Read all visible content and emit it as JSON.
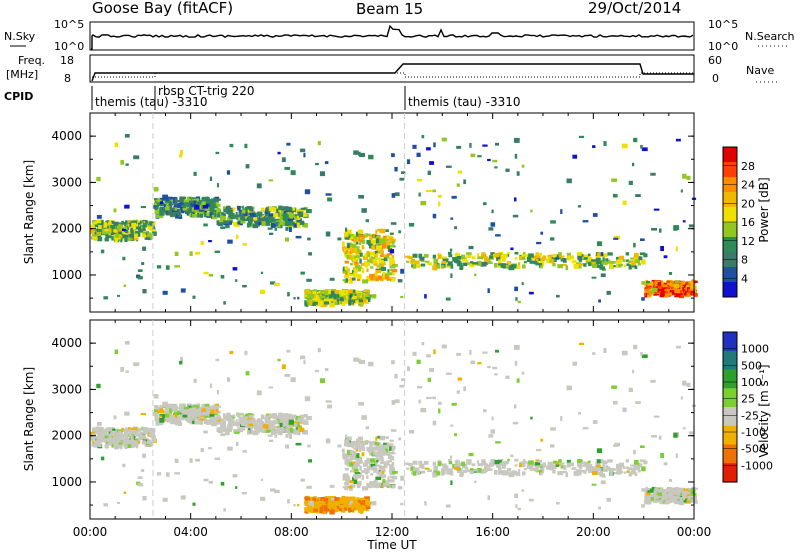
{
  "header": {
    "site": "Goose Bay (fitACF)",
    "beam": "Beam 15",
    "date": "29/Oct/2014"
  },
  "panels": {
    "nsky": {
      "label": "N.Sky",
      "right_label": "N.Search",
      "left_ticks": [
        "10^5",
        "10^0"
      ],
      "right_ticks": [
        "10^5",
        "10^0"
      ]
    },
    "freq": {
      "label_line1": "Freq.",
      "label_line2": "[MHz]",
      "right_label": "Nave",
      "left_ticks": [
        "18",
        "8"
      ],
      "right_ticks": [
        "60",
        "0"
      ]
    },
    "cpid": {
      "label": "CPID",
      "entries": [
        {
          "text": "themis (tau) -3310",
          "start_hour": 0
        },
        {
          "text": "rbsp CT-trig 220",
          "start_hour": 2.5
        },
        {
          "text": "themis (tau) -3310",
          "start_hour": 12.5
        }
      ]
    }
  },
  "colorbars": {
    "power": {
      "title": "Power [dB]",
      "ticks": [
        "28",
        "24",
        "20",
        "16",
        "12",
        "8",
        "4"
      ],
      "colors": [
        "#e00000",
        "#ff4000",
        "#ff8c00",
        "#f0b800",
        "#f0e000",
        "#90c820",
        "#2e8b57",
        "#3a7a6a",
        "#1f4fa0",
        "#1010d0"
      ]
    },
    "velocity": {
      "title": "Velocity [m s⁻¹]",
      "ticks": [
        "1000",
        "500",
        "100",
        "25",
        "-25",
        "-100",
        "-500",
        "-1000"
      ],
      "colors": [
        "#2030c0",
        "#1f7a7a",
        "#2ea02e",
        "#7ad030",
        "#c8c8c0",
        "#f0b000",
        "#f07000",
        "#e02000"
      ]
    }
  },
  "chart_data": [
    {
      "type": "heatmap",
      "name": "Power panel",
      "ylabel": "Slant Range [km]",
      "xlabel": "",
      "xlim": [
        0,
        24
      ],
      "ylim": [
        200,
        4500
      ],
      "yticks": [
        1000,
        2000,
        3000,
        4000
      ],
      "xticks_hours": [
        0,
        4,
        8,
        12,
        16,
        20,
        24
      ],
      "colorbar": "Power [dB]",
      "grid": false,
      "structures": [
        {
          "hours": [
            0,
            2.5
          ],
          "range_km": [
            1800,
            2200
          ],
          "power_db": 14
        },
        {
          "hours": [
            2.5,
            5
          ],
          "range_km": [
            2300,
            2700
          ],
          "power_db": 10
        },
        {
          "hours": [
            5,
            8.5
          ],
          "range_km": [
            2100,
            2500
          ],
          "power_db": 12
        },
        {
          "hours": [
            8.5,
            11
          ],
          "range_km": [
            400,
            700
          ],
          "power_db": 16
        },
        {
          "hours": [
            10,
            12
          ],
          "range_km": [
            900,
            2000
          ],
          "power_db": 18
        },
        {
          "hours": [
            12.5,
            22
          ],
          "range_km": [
            1200,
            1500
          ],
          "power_db": 16
        },
        {
          "hours": [
            22,
            24
          ],
          "range_km": [
            600,
            900
          ],
          "power_db": 26
        }
      ]
    },
    {
      "type": "heatmap",
      "name": "Velocity panel",
      "ylabel": "Slant Range [km]",
      "xlabel": "Time UT",
      "xlim": [
        0,
        24
      ],
      "ylim": [
        200,
        4500
      ],
      "yticks": [
        1000,
        2000,
        3000,
        4000
      ],
      "xtick_labels": [
        "00:00",
        "04:00",
        "08:00",
        "12:00",
        "16:00",
        "20:00",
        "00:00"
      ],
      "colorbar": "Velocity [m s-1]",
      "grid": false
    }
  ]
}
